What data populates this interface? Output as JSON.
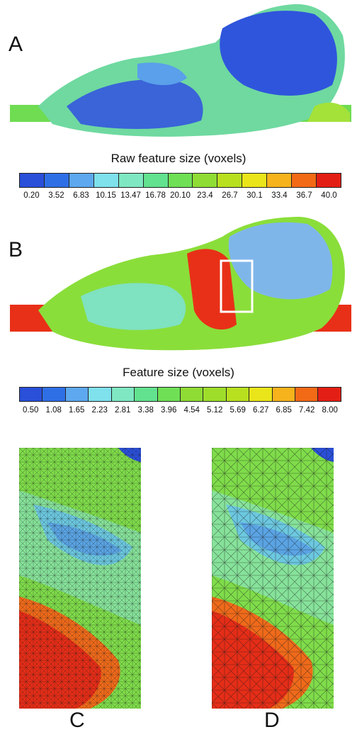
{
  "panels": {
    "a": "A",
    "b": "B",
    "c": "C",
    "d": "D"
  },
  "scale_a": {
    "title": "Raw feature size (voxels)",
    "ticks": [
      "0.20",
      "3.52",
      "6.83",
      "10.15",
      "13.47",
      "16.78",
      "20.10",
      "23.4",
      "26.7",
      "30.1",
      "33.4",
      "36.7",
      "40.0"
    ],
    "colors": [
      "#2a4fd8",
      "#2f6fe6",
      "#5ea8ef",
      "#7fe1ec",
      "#7fe8c2",
      "#62e28f",
      "#6fe055",
      "#8fdc35",
      "#b8e01f",
      "#e9e51a",
      "#f7b31c",
      "#f36a16",
      "#e31f15"
    ]
  },
  "scale_b": {
    "title": "Feature size (voxels)",
    "ticks": [
      "0.50",
      "1.08",
      "1.65",
      "2.23",
      "2.81",
      "3.38",
      "3.96",
      "4.54",
      "5.12",
      "5.69",
      "6.27",
      "6.85",
      "7.42",
      "8.00"
    ],
    "colors": [
      "#2a4fd8",
      "#2f6fe6",
      "#5ea8ef",
      "#7fe1ec",
      "#7fe8c2",
      "#62e28f",
      "#6fe055",
      "#8fdc35",
      "#9ede2b",
      "#b8e01f",
      "#e9e51a",
      "#f7b31c",
      "#f36a16",
      "#e31f15"
    ]
  }
}
